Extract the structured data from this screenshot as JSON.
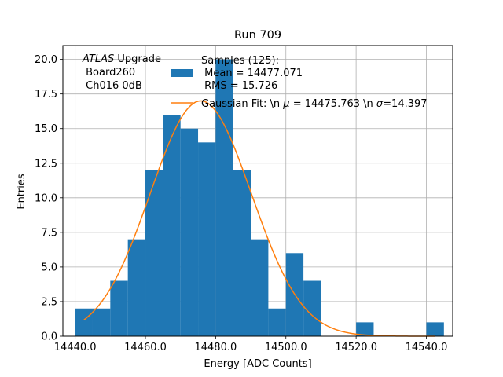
{
  "chart_data": {
    "type": "bar",
    "title": "Run 709",
    "xlabel": "Energy [ADC Counts]",
    "ylabel": "Entries",
    "xlim": [
      14436.5,
      14547.5
    ],
    "ylim": [
      0,
      21
    ],
    "grid": true,
    "x_ticks": [
      14440,
      14460,
      14480,
      14500,
      14520,
      14540
    ],
    "x_tick_labels": [
      "14440.0",
      "14460.0",
      "14480.0",
      "14500.0",
      "14520.0",
      "14540.0"
    ],
    "y_ticks": [
      0,
      2.5,
      5,
      7.5,
      10,
      12.5,
      15,
      17.5,
      20
    ],
    "y_tick_labels": [
      "0.0",
      "2.5",
      "5.0",
      "7.5",
      "10.0",
      "12.5",
      "15.0",
      "17.5",
      "20.0"
    ],
    "histogram": {
      "name": "Samples (125):\n Mean = 14477.071\n RMS = 15.726",
      "color": "#1f77b4",
      "bin_edges": [
        14440,
        14445,
        14450,
        14455,
        14460,
        14465,
        14470,
        14475,
        14480,
        14485,
        14490,
        14495,
        14500,
        14505,
        14510,
        14515,
        14520,
        14525,
        14530,
        14535,
        14540,
        14545
      ],
      "counts": [
        2,
        2,
        4,
        7,
        12,
        16,
        15,
        14,
        20,
        12,
        7,
        2,
        6,
        4,
        0,
        0,
        1,
        0,
        0,
        0,
        1
      ]
    },
    "fit": {
      "name": "Gaussian Fit: \\n $\\mu$ = 14475.763 \\n $\\sigma$=14.397",
      "color": "#ff7f0e",
      "mu": 14475.763,
      "sigma": 14.397,
      "amplitude": 17.0,
      "x_range": [
        14442.5,
        14542.5
      ]
    },
    "annotation": {
      "italic": "ATLAS",
      "rest": " Upgrade",
      "line2": " Board260",
      "line3": " Ch016 0dB"
    },
    "legend": {
      "placement": "upper center",
      "samples_lines": [
        "Samples (125):",
        " Mean = 14477.071",
        " RMS = 15.726"
      ],
      "fit_prefix": "Gaussian Fit: \\n ",
      "fit_mu": "μ",
      "fit_middle": " = 14475.763 \\n ",
      "fit_sigma": "σ",
      "fit_suffix": "=14.397"
    }
  }
}
